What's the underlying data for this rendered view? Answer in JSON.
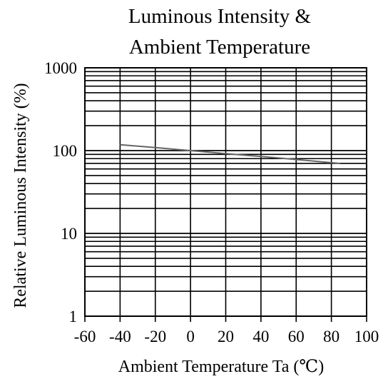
{
  "chart_data": {
    "type": "line",
    "title_lines": [
      "Luminous Intensity &",
      "Ambient Temperature"
    ],
    "xlabel": "Ambient Temperature Ta (℃)",
    "ylabel": "Relative Luminous Intensity (%)",
    "xlim": [
      -60,
      100
    ],
    "ylim": [
      1,
      1000
    ],
    "yscale": "log",
    "grid": true,
    "x_ticks": [
      -60,
      -40,
      -20,
      0,
      20,
      40,
      60,
      80,
      100
    ],
    "x_tick_labels": [
      "-60",
      "-40",
      "-20",
      "0",
      "20",
      "40",
      "60",
      "80",
      "100"
    ],
    "y_ticks": [
      1,
      10,
      100,
      1000
    ],
    "y_tick_labels": [
      "1",
      "10",
      "100",
      "1000"
    ],
    "series": [
      {
        "x": [
          -40,
          -20,
          0,
          20,
          40,
          60,
          85
        ],
        "values": [
          118,
          109,
          100,
          92,
          85,
          78,
          70
        ],
        "color": "#666666"
      }
    ]
  }
}
